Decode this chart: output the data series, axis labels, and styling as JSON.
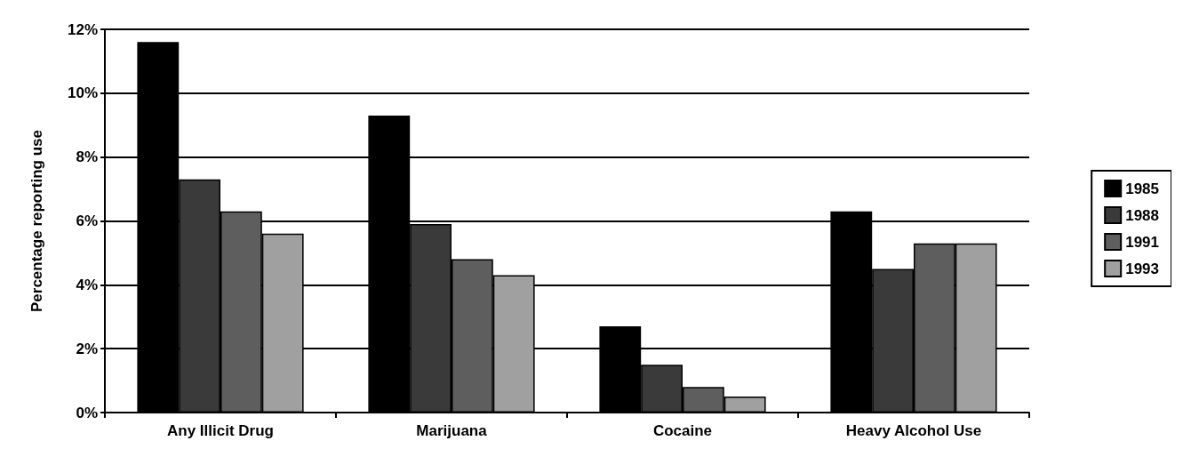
{
  "chart_data": {
    "type": "bar",
    "ylabel": "Percentage reporting use",
    "categories": [
      "Any Illicit Drug",
      "Marijuana",
      "Cocaine",
      "Heavy Alcohol Use"
    ],
    "series": [
      {
        "name": "1985",
        "color": "#000000",
        "values": [
          11.6,
          9.3,
          2.7,
          6.3
        ]
      },
      {
        "name": "1988",
        "color": "#3a3a3a",
        "values": [
          7.3,
          5.9,
          1.5,
          4.5
        ]
      },
      {
        "name": "1991",
        "color": "#5e5e5e",
        "values": [
          6.3,
          4.8,
          0.8,
          5.3
        ]
      },
      {
        "name": "1993",
        "color": "#a0a0a0",
        "values": [
          5.6,
          4.3,
          0.5,
          5.3
        ]
      }
    ],
    "ylim": [
      0,
      12
    ],
    "yticks": [
      {
        "value": 0,
        "label": "0%"
      },
      {
        "value": 2,
        "label": "2%"
      },
      {
        "value": 4,
        "label": "4%"
      },
      {
        "value": 6,
        "label": "6%"
      },
      {
        "value": 8,
        "label": "8%"
      },
      {
        "value": 10,
        "label": "10%"
      },
      {
        "value": 12,
        "label": "12%"
      }
    ],
    "grid": "y",
    "legend": "right"
  }
}
